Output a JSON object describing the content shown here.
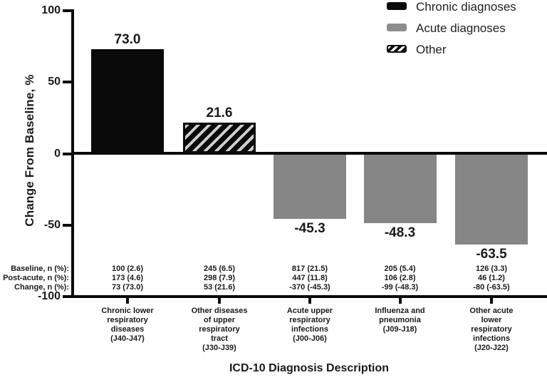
{
  "colors": {
    "black": "#0a0a0a",
    "gray": "#868686",
    "hatch_light": "#cfcfcf",
    "background": "#ffffff"
  },
  "chart_data": {
    "type": "bar",
    "title": "",
    "xlabel": "ICD-10 Diagnosis Description",
    "ylabel": "Change From Baseline, %",
    "ylim": [
      -100,
      100
    ],
    "yticks": [
      100,
      50,
      0,
      -50,
      -100
    ],
    "grid": "off",
    "legend_position": "top-right",
    "legend": [
      {
        "label": "Chronic diagnoses",
        "style": "black"
      },
      {
        "label": "Acute diagnoses",
        "style": "gray"
      },
      {
        "label": "Other",
        "style": "hatch"
      }
    ],
    "table_row_labels": [
      "Baseline, n (%):",
      "Post-acute, n (%):",
      "Change, n (%):"
    ],
    "categories": [
      {
        "name": "Chronic lower respiratory diseases (J40-J47)",
        "label_lines": [
          "Chronic lower",
          "respiratory",
          "diseases",
          "(J40-J47)"
        ],
        "value": 73.0,
        "value_label": "73.0",
        "style": "black",
        "table": [
          "100 (2.6)",
          "173 (4.6)",
          "73 (73.0)"
        ]
      },
      {
        "name": "Other diseases of upper respiratory tract (J30-J39)",
        "label_lines": [
          "Other diseases",
          "of upper",
          "respiratory",
          "tract",
          "(J30-J39)"
        ],
        "value": 21.6,
        "value_label": "21.6",
        "style": "hatch",
        "table": [
          "245 (6.5)",
          "298 (7.9)",
          "53 (21.6)"
        ]
      },
      {
        "name": "Acute upper respiratory infections (J00-J06)",
        "label_lines": [
          "Acute upper",
          "respiratory",
          "infections",
          "(J00-J06)"
        ],
        "value": -45.3,
        "value_label": "-45.3",
        "style": "gray",
        "table": [
          "817 (21.5)",
          "447 (11.8)",
          "-370 (-45.3)"
        ]
      },
      {
        "name": "Influenza and pneumonia (J09-J18)",
        "label_lines": [
          "Influenza and",
          "pneumonia",
          "(J09-J18)"
        ],
        "value": -48.3,
        "value_label": "-48.3",
        "style": "gray",
        "table": [
          "205 (5.4)",
          "106 (2.8)",
          "-99 (-48.3)"
        ]
      },
      {
        "name": "Other acute lower respiratory infections (J20-J22)",
        "label_lines": [
          "Other acute",
          "lower",
          "respiratory",
          "infections",
          "(J20-J22)"
        ],
        "value": -63.5,
        "value_label": "-63.5",
        "style": "gray",
        "table": [
          "126 (3.3)",
          "46 (1.2)",
          "-80 (-63.5)"
        ]
      }
    ]
  }
}
